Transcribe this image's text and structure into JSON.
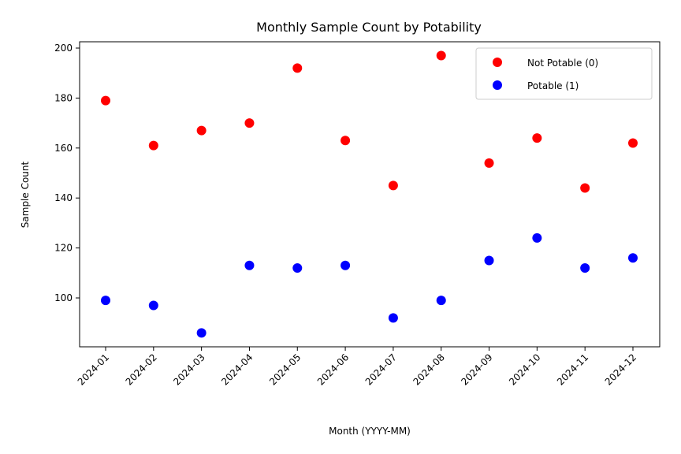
{
  "chart_data": {
    "type": "scatter",
    "title": "Monthly Sample Count by Potability",
    "xlabel": "Month (YYYY-MM)",
    "ylabel": "Sample Count",
    "categories": [
      "2024-01",
      "2024-02",
      "2024-03",
      "2024-04",
      "2024-05",
      "2024-06",
      "2024-07",
      "2024-08",
      "2024-09",
      "2024-10",
      "2024-11",
      "2024-12"
    ],
    "yticks": [
      100,
      120,
      140,
      160,
      180,
      200
    ],
    "ylim": [
      79,
      203
    ],
    "grid": false,
    "legend_position": "top-right",
    "series": [
      {
        "name": "Not Potable (0)",
        "color": "#ff0000",
        "values": [
          179,
          161,
          167,
          170,
          192,
          163,
          145,
          197,
          154,
          164,
          144,
          162
        ]
      },
      {
        "name": "Potable (1)",
        "color": "#0000ff",
        "values": [
          99,
          97,
          86,
          113,
          112,
          113,
          92,
          99,
          115,
          124,
          112,
          116
        ]
      }
    ]
  }
}
